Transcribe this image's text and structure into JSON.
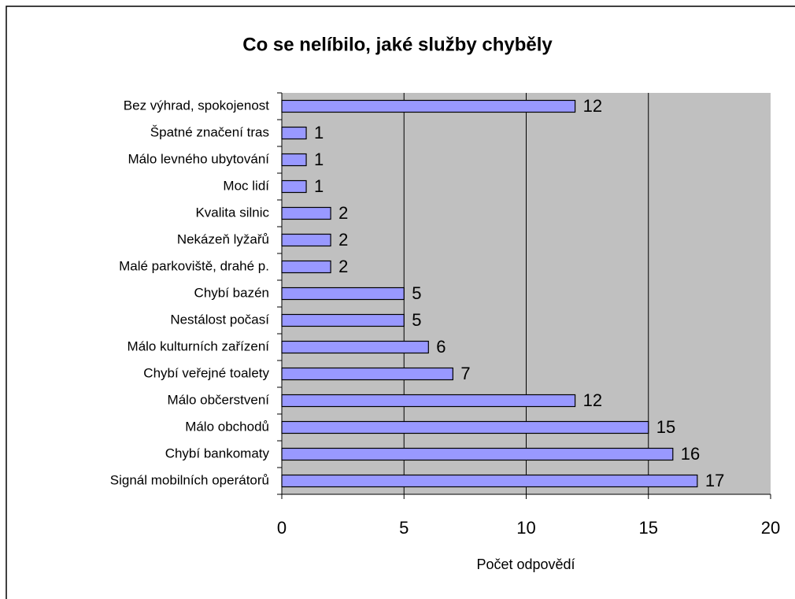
{
  "chart_data": {
    "type": "bar",
    "orientation": "horizontal",
    "title": "Co se nelíbilo, jaké služby chyběly",
    "x_label": "Počet odpovědí",
    "categories": [
      "Bez výhrad, spokojenost",
      "Špatné značení tras",
      "Málo levného ubytování",
      "Moc lidí",
      "Kvalita silnic",
      "Nekázeň lyžařů",
      "Malé parkoviště, drahé p.",
      "Chybí bazén",
      "Nestálost počasí",
      "Málo kulturních zařízení",
      "Chybí veřejné toalety",
      "Málo občerstvení",
      "Málo obchodů",
      "Chybí bankomaty",
      "Signál mobilních operátorů"
    ],
    "values": [
      12,
      1,
      1,
      1,
      2,
      2,
      2,
      5,
      5,
      6,
      7,
      12,
      15,
      16,
      17
    ],
    "color": "#9999ff",
    "xlim": [
      0,
      20
    ],
    "xticks": [
      0,
      5,
      10,
      15,
      20
    ],
    "grid": true
  }
}
